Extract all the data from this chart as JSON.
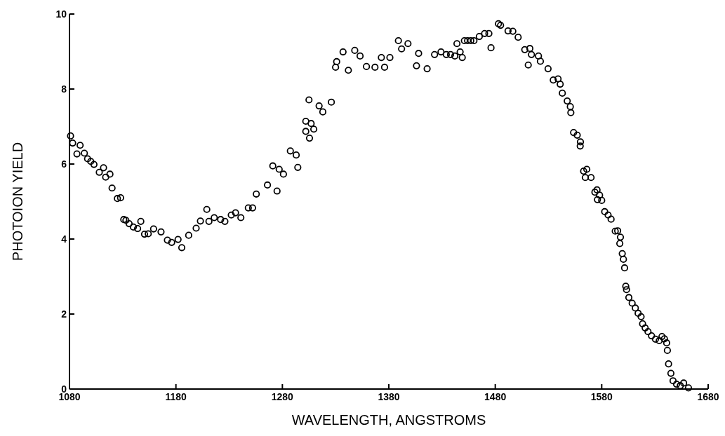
{
  "chart_data": {
    "type": "scatter",
    "xlabel": "WAVELENGTH, ANGSTROMS",
    "ylabel": "PHOTOION YIELD",
    "xlim": [
      1080,
      1680
    ],
    "ylim": [
      0,
      10
    ],
    "xticks": [
      1080,
      1180,
      1280,
      1380,
      1480,
      1580,
      1680
    ],
    "yticks": [
      0,
      2,
      4,
      6,
      8,
      10
    ],
    "marker": "circle",
    "grid": false,
    "series": [
      {
        "color": "#000000",
        "x": [
          1081,
          1083,
          1090,
          1087,
          1094,
          1097,
          1100,
          1103,
          1112,
          1108,
          1118,
          1114,
          1120,
          1125,
          1128,
          1131,
          1133,
          1136,
          1140,
          1144,
          1147,
          1150.5,
          1154,
          1159,
          1166,
          1172,
          1176,
          1182,
          1185.5,
          1192,
          1199,
          1203,
          1209,
          1211,
          1216,
          1222,
          1226,
          1232,
          1236,
          1241,
          1248,
          1252,
          1255.5,
          1266,
          1271,
          1275,
          1277,
          1281,
          1287.5,
          1293,
          1294.5,
          1305.5,
          1302,
          1309.5,
          1302,
          1307,
          1305,
          1314.5,
          1318,
          1326,
          1330,
          1331,
          1337,
          1342,
          1348,
          1353,
          1359,
          1367,
          1373,
          1376,
          1381,
          1389,
          1392,
          1398,
          1406,
          1408,
          1416,
          1423,
          1429,
          1434,
          1438,
          1442,
          1444,
          1447,
          1449,
          1451,
          1454,
          1457,
          1460,
          1465,
          1470,
          1474,
          1476,
          1483,
          1485,
          1492,
          1496.5,
          1501.5,
          1507.7,
          1512.5,
          1514,
          1520.6,
          1522.4,
          1511,
          1529.6,
          1534.5,
          1539,
          1541,
          1543,
          1547.6,
          1550.5,
          1551,
          1553.6,
          1557,
          1560,
          1559.8,
          1563,
          1566,
          1564.6,
          1570,
          1573.6,
          1575.6,
          1578,
          1576,
          1580,
          1582.8,
          1586,
          1588.8,
          1592.7,
          1595,
          1597.6,
          1597,
          1599.3,
          1600.4,
          1601.5,
          1602.6,
          1603.3,
          1605.5,
          1608.6,
          1611.6,
          1614.2,
          1617,
          1618.4,
          1620.8,
          1623.5,
          1626.8,
          1630.5,
          1634,
          1636.6,
          1638.9,
          1641,
          1641.7,
          1642.8,
          1645,
          1647,
          1650.3,
          1653.8,
          1657,
          1661.5
        ],
        "values": [
          6.75,
          6.56,
          6.5,
          6.27,
          6.29,
          6.14,
          6.07,
          5.99,
          5.9,
          5.78,
          5.73,
          5.65,
          5.36,
          5.08,
          5.1,
          4.52,
          4.5,
          4.41,
          4.32,
          4.28,
          4.47,
          4.13,
          4.14,
          4.27,
          4.19,
          3.97,
          3.91,
          3.99,
          3.77,
          4.1,
          4.29,
          4.48,
          4.79,
          4.47,
          4.57,
          4.52,
          4.47,
          4.64,
          4.7,
          4.57,
          4.83,
          4.83,
          5.2,
          5.44,
          5.95,
          5.28,
          5.86,
          5.73,
          6.35,
          6.24,
          5.91,
          6.69,
          6.87,
          6.93,
          7.14,
          7.08,
          7.71,
          7.55,
          7.39,
          7.65,
          8.58,
          8.73,
          8.99,
          8.5,
          9.03,
          8.88,
          8.6,
          8.58,
          8.84,
          8.58,
          8.84,
          9.29,
          9.07,
          9.21,
          8.62,
          8.95,
          8.54,
          8.92,
          8.99,
          8.92,
          8.92,
          8.88,
          9.21,
          8.99,
          8.84,
          9.29,
          9.29,
          9.29,
          9.29,
          9.4,
          9.48,
          9.48,
          9.1,
          9.74,
          9.7,
          9.55,
          9.54,
          9.38,
          9.05,
          9.08,
          8.92,
          8.88,
          8.74,
          8.64,
          8.54,
          8.24,
          8.27,
          8.13,
          7.89,
          7.68,
          7.53,
          7.37,
          6.84,
          6.77,
          6.59,
          6.48,
          5.81,
          5.86,
          5.64,
          5.64,
          5.25,
          5.31,
          5.17,
          5.05,
          5.03,
          4.73,
          4.64,
          4.53,
          4.21,
          4.22,
          4.05,
          3.88,
          3.61,
          3.46,
          3.23,
          2.74,
          2.65,
          2.44,
          2.29,
          2.16,
          2.02,
          1.93,
          1.74,
          1.63,
          1.53,
          1.42,
          1.33,
          1.29,
          1.4,
          1.34,
          1.23,
          1.03,
          0.67,
          0.42,
          0.22,
          0.13,
          0.09,
          0.16,
          0.03
        ]
      }
    ]
  }
}
